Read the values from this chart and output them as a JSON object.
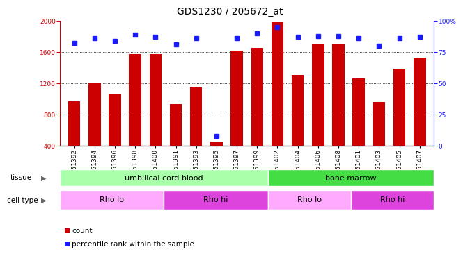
{
  "title": "GDS1230 / 205672_at",
  "samples": [
    "GSM51392",
    "GSM51394",
    "GSM51396",
    "GSM51398",
    "GSM51400",
    "GSM51391",
    "GSM51393",
    "GSM51395",
    "GSM51397",
    "GSM51399",
    "GSM51402",
    "GSM51404",
    "GSM51406",
    "GSM51408",
    "GSM51401",
    "GSM51403",
    "GSM51405",
    "GSM51407"
  ],
  "counts": [
    970,
    1200,
    1060,
    1570,
    1570,
    930,
    1150,
    450,
    1620,
    1650,
    1980,
    1310,
    1700,
    1700,
    1260,
    960,
    1390,
    1530
  ],
  "percentiles": [
    82,
    86,
    84,
    89,
    87,
    81,
    86,
    8,
    86,
    90,
    95,
    87,
    88,
    88,
    86,
    80,
    86,
    87
  ],
  "ylim_left": [
    400,
    2000
  ],
  "ylim_right": [
    0,
    100
  ],
  "yticks_left": [
    400,
    800,
    1200,
    1600,
    2000
  ],
  "yticks_right": [
    0,
    25,
    50,
    75,
    100
  ],
  "bar_color": "#cc0000",
  "dot_color": "#1a1aff",
  "tissue_groups": [
    {
      "label": "umbilical cord blood",
      "start": 0,
      "end": 10,
      "color": "#aaffaa"
    },
    {
      "label": "bone marrow",
      "start": 10,
      "end": 18,
      "color": "#44dd44"
    }
  ],
  "cell_type_groups": [
    {
      "label": "Rho lo",
      "start": 0,
      "end": 5,
      "color": "#ffaaff"
    },
    {
      "label": "Rho hi",
      "start": 5,
      "end": 10,
      "color": "#dd44dd"
    },
    {
      "label": "Rho lo",
      "start": 10,
      "end": 14,
      "color": "#ffaaff"
    },
    {
      "label": "Rho hi",
      "start": 14,
      "end": 18,
      "color": "#dd44dd"
    }
  ],
  "legend_count_color": "#cc0000",
  "legend_pct_color": "#1a1aff",
  "background_color": "#ffffff",
  "title_fontsize": 10,
  "tick_fontsize": 6.5,
  "band_fontsize": 8,
  "label_fontsize": 7.5
}
